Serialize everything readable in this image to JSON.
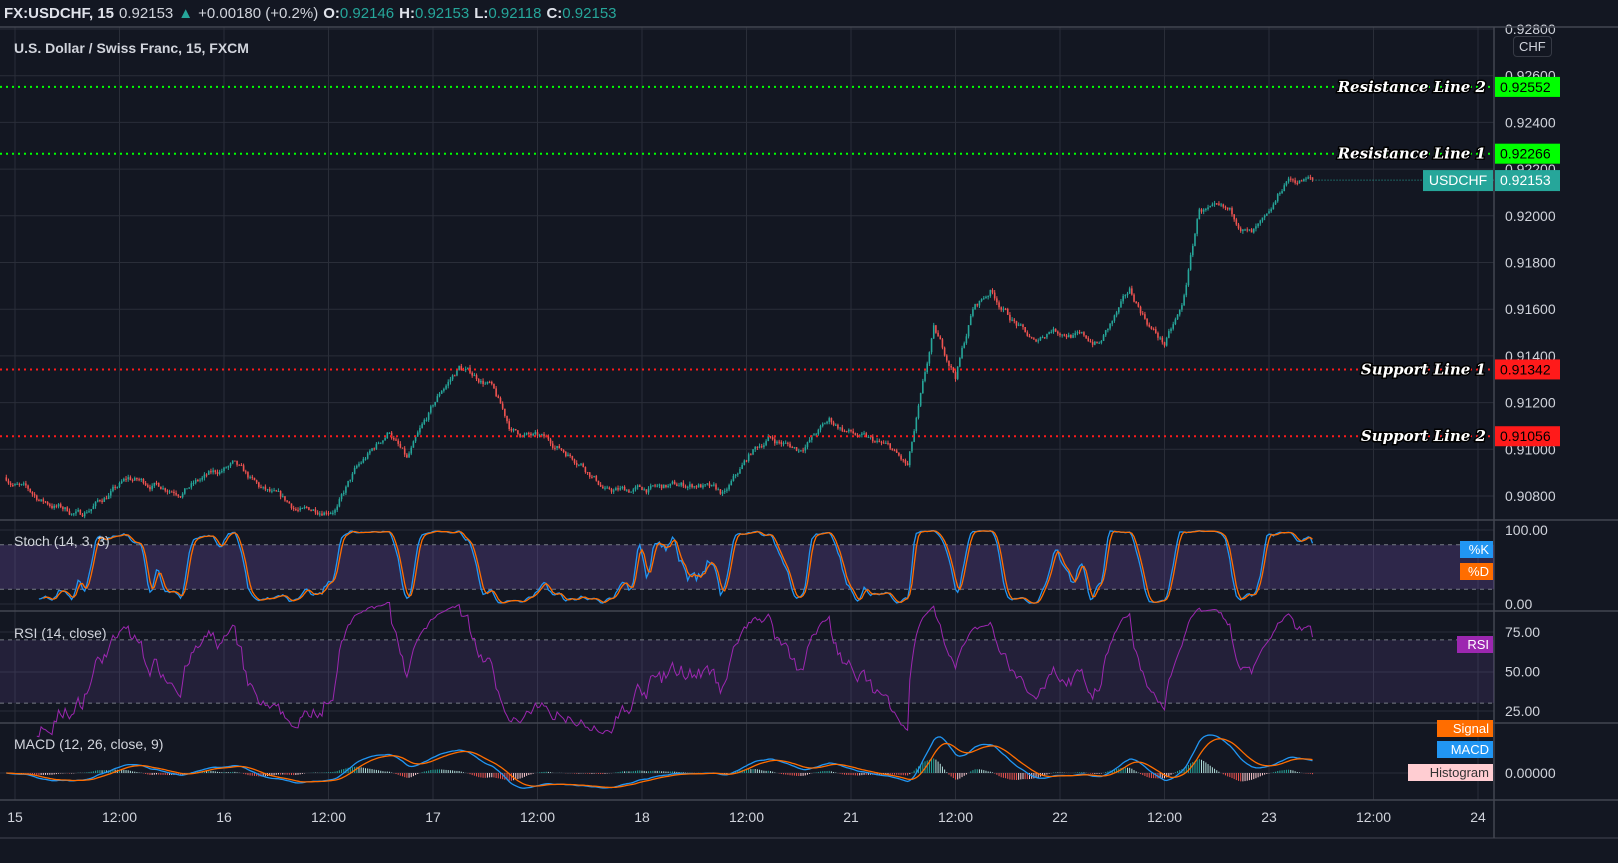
{
  "header": {
    "symbol": "FX:USDCHF, 15",
    "last": "0.92153",
    "arrow": "▲",
    "change": "+0.00180 (+0.2%)",
    "o_label": "O:",
    "o": "0.92146",
    "h_label": "H:",
    "h": "0.92153",
    "l_label": "L:",
    "l": "0.92118",
    "c_label": "C:",
    "c": "0.92153"
  },
  "chart_title": "U.S. Dollar / Swiss Franc, 15, FXCM",
  "currency_button": "CHF",
  "price_axis_ticks": [
    "0.92800",
    "0.92600",
    "0.92400",
    "0.92200",
    "0.92000",
    "0.91800",
    "0.91600",
    "0.91400",
    "0.91200",
    "0.91000",
    "0.90800"
  ],
  "levels": [
    {
      "label": "Resistance Line 2",
      "price": "0.92552",
      "color": "#00ff00"
    },
    {
      "label": "Resistance Line 1",
      "price": "0.92266",
      "color": "#00ff00"
    },
    {
      "label": "Support Line 1",
      "price": "0.91342",
      "color": "#ff1a1a"
    },
    {
      "label": "Support Line 2",
      "price": "0.91056",
      "color": "#ff1a1a"
    }
  ],
  "last_price": {
    "symbol": "USDCHF",
    "price": "0.92153"
  },
  "indicators": {
    "stoch": {
      "title": "Stoch (14, 3, 3)",
      "k_label": "%K",
      "d_label": "%D",
      "ticks": [
        "100.00",
        "0.00"
      ]
    },
    "rsi": {
      "title": "RSI (14, close)",
      "label": "RSI",
      "ticks": [
        "75.00",
        "50.00",
        "25.00"
      ]
    },
    "macd": {
      "title": "MACD (12, 26, close, 9)",
      "signal_label": "Signal",
      "macd_label": "MACD",
      "hist_label": "Histogram",
      "ticks": [
        "0.00000"
      ]
    }
  },
  "time_axis": [
    "15",
    "12:00",
    "16",
    "12:00",
    "17",
    "12:00",
    "18",
    "12:00",
    "21",
    "12:00",
    "22",
    "12:00",
    "23",
    "12:00",
    "24"
  ],
  "colors": {
    "background": "#131722",
    "grid": "#2a2e39",
    "up": "#26a69a",
    "down": "#ef5350",
    "stoch_k": "#2196f3",
    "stoch_d": "#ff6d00",
    "rsi": "#9c27b0",
    "macd": "#2196f3",
    "signal": "#ff6d00",
    "band": "#7e57c2"
  },
  "chart_data": {
    "type": "candlestick",
    "interval": "15m",
    "approx_close_path": [
      [
        "14 23:00",
        0.9088
      ],
      [
        "15 03:00",
        0.9078
      ],
      [
        "15 07:30",
        0.9072
      ],
      [
        "15 13:00",
        0.9087
      ],
      [
        "15 19:00",
        0.9083
      ],
      [
        "16 01:00",
        0.9093
      ],
      [
        "16 04:00",
        0.9083
      ],
      [
        "16 09:00",
        0.9073
      ],
      [
        "16 13:00",
        0.9076
      ],
      [
        "16 15:00",
        0.909
      ],
      [
        "16 19:00",
        0.9108
      ],
      [
        "16 21:00",
        0.9095
      ],
      [
        "17 01:00",
        0.9125
      ],
      [
        "17 03:00",
        0.9135
      ],
      [
        "17 06:30",
        0.9128
      ],
      [
        "17 09:00",
        0.9108
      ],
      [
        "17 13:30",
        0.9103
      ],
      [
        "17 17:00",
        0.9095
      ],
      [
        "17 20:00",
        0.9082
      ],
      [
        "18 01:00",
        0.9083
      ],
      [
        "18 06:30",
        0.9085
      ],
      [
        "18 09:30",
        0.908
      ],
      [
        "18 12:30",
        0.9098
      ],
      [
        "18 14:30",
        0.9105
      ],
      [
        "18 18:00",
        0.91
      ],
      [
        "18 21:30",
        0.9112
      ],
      [
        "21 01:00",
        0.9105
      ],
      [
        "21 04:30",
        0.91
      ],
      [
        "21 06:30",
        0.9092
      ],
      [
        "21 09:30",
        0.915
      ],
      [
        "21 12:00",
        0.9132
      ],
      [
        "21 14:00",
        0.916
      ],
      [
        "21 16:00",
        0.9168
      ],
      [
        "21 18:00",
        0.9158
      ],
      [
        "21 21:00",
        0.9145
      ],
      [
        "21 23:00",
        0.9152
      ],
      [
        "22 01:00",
        0.915
      ],
      [
        "22 04:30",
        0.9145
      ],
      [
        "22 08:00",
        0.9167
      ],
      [
        "22 10:30",
        0.9152
      ],
      [
        "22 12:00",
        0.9145
      ],
      [
        "22 14:00",
        0.916
      ],
      [
        "22 16:00",
        0.9203
      ],
      [
        "22 19:30",
        0.92
      ],
      [
        "22 22:00",
        0.9192
      ],
      [
        "23 00:00",
        0.9198
      ],
      [
        "23 02:00",
        0.9215
      ],
      [
        "23 05:00",
        0.92153
      ]
    ],
    "ylim": [
      0.9072,
      0.928
    ],
    "grid": true
  }
}
